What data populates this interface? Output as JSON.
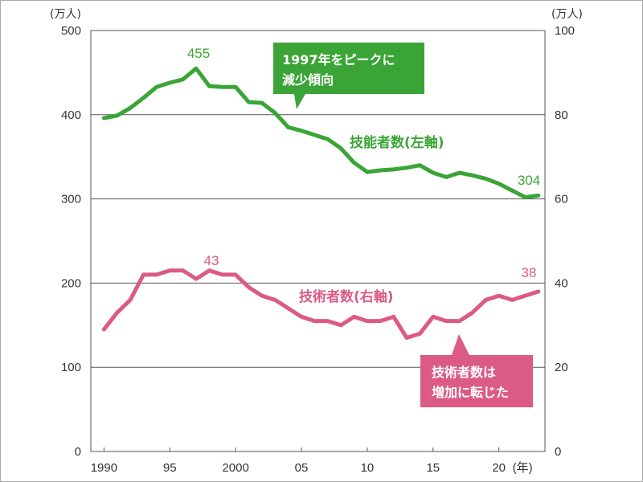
{
  "chart_data": {
    "type": "line",
    "title": "",
    "xlabel": "(年)",
    "left_axis": {
      "unit": "(万人)",
      "ticks": [
        "0",
        "100",
        "200",
        "300",
        "400",
        "500"
      ],
      "ylim": [
        0,
        500
      ]
    },
    "right_axis": {
      "unit": "(万人)",
      "ticks": [
        "0",
        "20",
        "40",
        "60",
        "80",
        "100"
      ],
      "ylim": [
        0,
        100
      ]
    },
    "x_range": [
      1989,
      2023.5
    ],
    "x_ticks": [
      {
        "year": 1990,
        "label": "1990"
      },
      {
        "year": 1995,
        "label": "95"
      },
      {
        "year": 2000,
        "label": "2000"
      },
      {
        "year": 2005,
        "label": "05"
      },
      {
        "year": 2010,
        "label": "10"
      },
      {
        "year": 2015,
        "label": "15"
      },
      {
        "year": 2020,
        "label": "20"
      }
    ],
    "gridlines": [
      100,
      200,
      300,
      400
    ],
    "x": [
      1990,
      1991,
      1992,
      1993,
      1994,
      1995,
      1996,
      1997,
      1998,
      1999,
      2000,
      2001,
      2002,
      2003,
      2004,
      2005,
      2006,
      2007,
      2008,
      2009,
      2010,
      2011,
      2012,
      2013,
      2014,
      2015,
      2016,
      2017,
      2018,
      2019,
      2020,
      2021,
      2022,
      2023
    ],
    "series": [
      {
        "name": "技能者数(左軸)",
        "axis": "left",
        "color": "#3aa536",
        "values": [
          396,
          399,
          408,
          420,
          433,
          438,
          442,
          455,
          434,
          433,
          433,
          415,
          414,
          402,
          385,
          381,
          376,
          371,
          360,
          343,
          332,
          334,
          335,
          337,
          340,
          331,
          326,
          331,
          328,
          324,
          318,
          310,
          302,
          304
        ],
        "peak_label": "455",
        "end_label": "304"
      },
      {
        "name": "技術者数(右軸)",
        "axis": "right",
        "color": "#dc5a86",
        "values": [
          29,
          33,
          36,
          42,
          42,
          43,
          43,
          41,
          43,
          42,
          42,
          39,
          37,
          36,
          34,
          32,
          31,
          31,
          30,
          32,
          31,
          31,
          32,
          27,
          28,
          32,
          31,
          31,
          33,
          36,
          37,
          36,
          37,
          38
        ],
        "peak_label": "43",
        "end_label": "38"
      }
    ],
    "annotations": [
      {
        "id": "skilled-callout",
        "lines": [
          "1997年をピークに",
          "減少傾向"
        ],
        "color": "#3aa536"
      },
      {
        "id": "engineer-callout",
        "lines": [
          "技術者数は",
          "増加に転じた"
        ],
        "color": "#dc5a86"
      }
    ]
  },
  "colors": {
    "frame": "#555555",
    "grid": "#555555",
    "outer_border": "#aaaaaa"
  }
}
